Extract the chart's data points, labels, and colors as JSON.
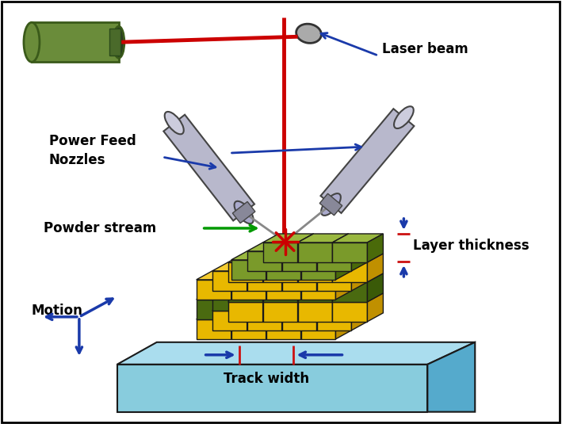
{
  "bg_color": "#ffffff",
  "border_color": "#1a1a1a",
  "blue": "#1a3aaa",
  "red": "#cc1111",
  "green_arrow": "#009900",
  "laser_color": "#cc0000",
  "nozzle_color": "#b8b8cc",
  "nozzle_outline": "#444444",
  "laser_gun_green": "#6a8c3a",
  "laser_gun_dark": "#3a5a1a",
  "mirror_color": "#aaaaaa",
  "block_yellow": "#e8b800",
  "block_yellow_top": "#f5cc30",
  "block_yellow_right": "#c09000",
  "block_green_front": "#7a9a2a",
  "block_green_top": "#9ab840",
  "block_green_right": "#4a6a0a",
  "block_olive_front": "#4a6a10",
  "block_olive_top": "#6a8a20",
  "block_olive_right": "#3a5a08",
  "plate_front": "#88ccdd",
  "plate_top": "#aaddee",
  "plate_right": "#55aacc",
  "spark_color": "#cc0000",
  "text_color": "#000000",
  "labels": {
    "laser_beam": "Laser beam",
    "power_feed": "Power Feed\nNozzles",
    "powder_stream": "Powder stream",
    "motion": "Motion",
    "track_width": "Track width",
    "layer_thickness": "Layer thickness"
  }
}
